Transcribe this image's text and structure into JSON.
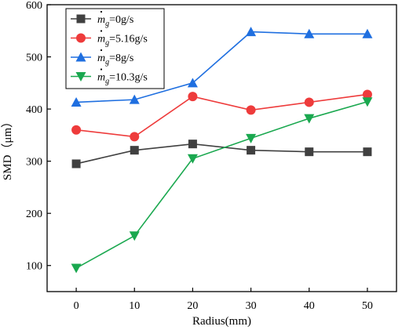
{
  "chart_data": {
    "type": "line",
    "x": [
      0,
      10,
      20,
      30,
      40,
      50
    ],
    "xlabel": "Radius(mm)",
    "ylabel": "SMD（μm）",
    "xlim": [
      -5,
      55
    ],
    "ylim": [
      50,
      600
    ],
    "xticks": [
      0,
      10,
      20,
      30,
      40,
      50
    ],
    "yticks": [
      100,
      200,
      300,
      400,
      500,
      600
    ],
    "grid": false,
    "legend_position": "top-left",
    "series": [
      {
        "name_prefix": "m",
        "name_sub": "g",
        "name_suffix": "=0g/s",
        "color": "#404040",
        "marker": "square",
        "values": [
          295,
          321,
          333,
          321,
          318,
          318
        ]
      },
      {
        "name_prefix": "m",
        "name_sub": "g",
        "name_suffix": "=5.16g/s",
        "color": "#ee3b3b",
        "marker": "circle",
        "values": [
          360,
          347,
          424,
          398,
          413,
          428
        ]
      },
      {
        "name_prefix": "m",
        "name_sub": "g",
        "name_suffix": "=8g/s",
        "color": "#1f6fe0",
        "marker": "triangle-up",
        "values": [
          413,
          418,
          450,
          548,
          544,
          544
        ]
      },
      {
        "name_prefix": "m",
        "name_sub": "g",
        "name_suffix": "=10.3g/s",
        "color": "#1aa84f",
        "marker": "triangle-down",
        "values": [
          95,
          157,
          305,
          344,
          382,
          414
        ]
      }
    ]
  }
}
